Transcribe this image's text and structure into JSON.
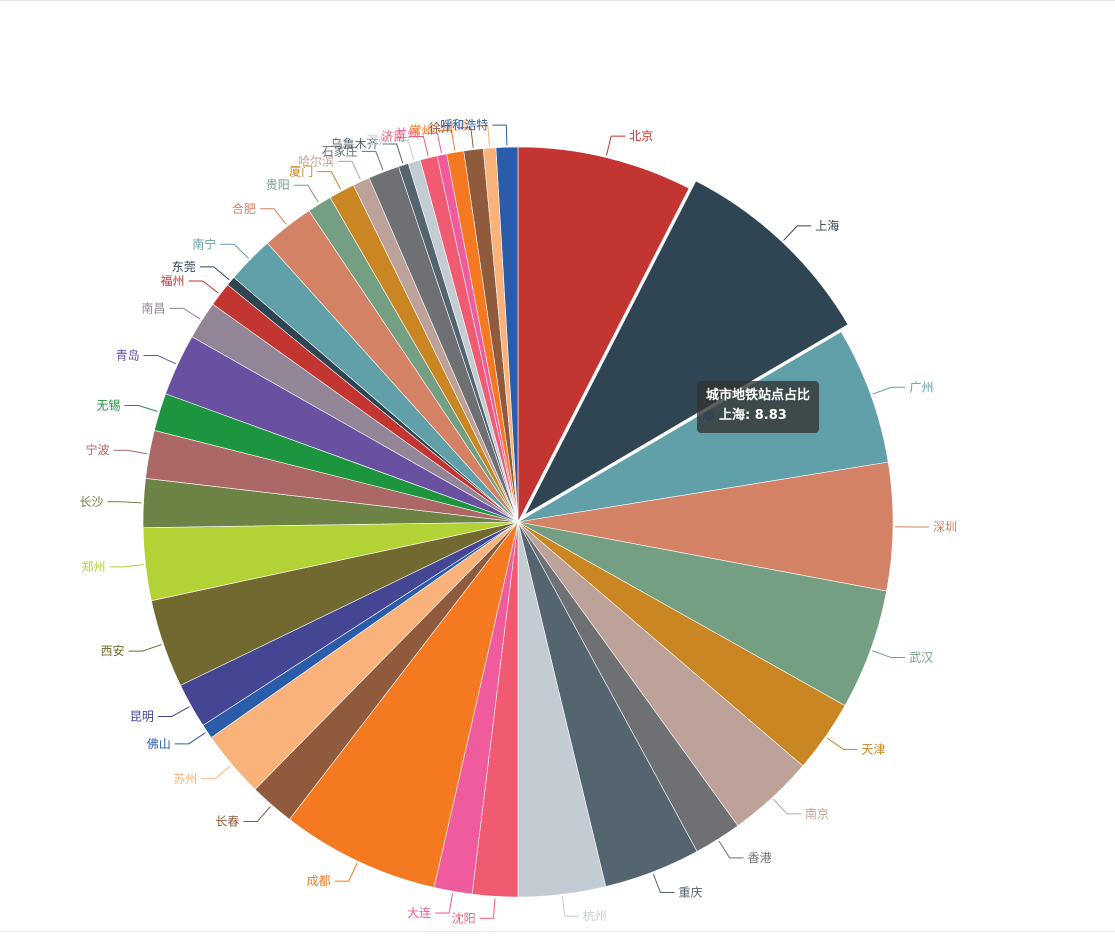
{
  "chart_data": {
    "type": "pie",
    "series_name": "城市地铁站点占比",
    "slices": [
      {
        "name": "北京",
        "value": 7.4,
        "color": "#c23531"
      },
      {
        "name": "上海",
        "value": 8.83,
        "color": "#2f4554",
        "highlighted": true
      },
      {
        "name": "广州",
        "value": 5.81,
        "color": "#61a0a8"
      },
      {
        "name": "深圳",
        "value": 5.4,
        "color": "#d48265"
      },
      {
        "name": "武汉",
        "value": 5.1,
        "color": "#749f83"
      },
      {
        "name": "天津",
        "value": 3.07,
        "color": "#ca8622"
      },
      {
        "name": "南京",
        "value": 3.69,
        "color": "#bda29a"
      },
      {
        "name": "香港",
        "value": 2.01,
        "color": "#6e7074"
      },
      {
        "name": "重庆",
        "value": 4.09,
        "color": "#546570"
      },
      {
        "name": "杭州",
        "value": 3.69,
        "color": "#c4ccd3"
      },
      {
        "name": "沈阳",
        "value": 1.92,
        "color": "#f05b72"
      },
      {
        "name": "大连",
        "value": 1.61,
        "color": "#ef5b9c"
      },
      {
        "name": "成都",
        "value": 6.71,
        "color": "#f47920"
      },
      {
        "name": "长春",
        "value": 1.9,
        "color": "#905a3d"
      },
      {
        "name": "苏州",
        "value": 2.83,
        "color": "#fab27b"
      },
      {
        "name": "佛山",
        "value": 0.62,
        "color": "#2a5caa"
      },
      {
        "name": "昆明",
        "value": 1.91,
        "color": "#444693"
      },
      {
        "name": "西安",
        "value": 3.74,
        "color": "#726930"
      },
      {
        "name": "郑州",
        "value": 3.07,
        "color": "#b2d235"
      },
      {
        "name": "长沙",
        "value": 2.06,
        "color": "#6d8346"
      },
      {
        "name": "宁波",
        "value": 2.03,
        "color": "#ac6767"
      },
      {
        "name": "无锡",
        "value": 1.6,
        "color": "#1d953f"
      },
      {
        "name": "青岛",
        "value": 2.62,
        "color": "#6950a1"
      },
      {
        "name": "南昌",
        "value": 1.61,
        "color": "#918597"
      },
      {
        "name": "福州",
        "value": 1.02,
        "color": "#c23531"
      },
      {
        "name": "东莞",
        "value": 0.4,
        "color": "#2f4554"
      },
      {
        "name": "南宁",
        "value": 2.0,
        "color": "#61a0a8"
      },
      {
        "name": "合肥",
        "value": 2.2,
        "color": "#d48265"
      },
      {
        "name": "贵阳",
        "value": 1.04,
        "color": "#749f83"
      },
      {
        "name": "厦门",
        "value": 1.1,
        "color": "#ca8622"
      },
      {
        "name": "哈尔滨",
        "value": 0.72,
        "color": "#bda29a"
      },
      {
        "name": "石家庄",
        "value": 1.31,
        "color": "#6e7074"
      },
      {
        "name": "乌鲁木齐",
        "value": 0.43,
        "color": "#546570"
      },
      {
        "name": "温州",
        "value": 0.52,
        "color": "#c4ccd3"
      },
      {
        "name": "济南",
        "value": 0.72,
        "color": "#f05b72"
      },
      {
        "name": "兰州",
        "value": 0.41,
        "color": "#ef5b9c"
      },
      {
        "name": "常州",
        "value": 0.72,
        "color": "#f47920"
      },
      {
        "name": "徐州",
        "value": 0.82,
        "color": "#905a3d"
      },
      {
        "name": "太原",
        "value": 0.53,
        "color": "#fab27b"
      },
      {
        "name": "呼和浩特",
        "value": 0.92,
        "color": "#2a5caa"
      }
    ]
  },
  "tooltip": {
    "title": "城市地铁站点占比",
    "item_label": "上海: 8.83",
    "marker_color": "#2f4554"
  }
}
